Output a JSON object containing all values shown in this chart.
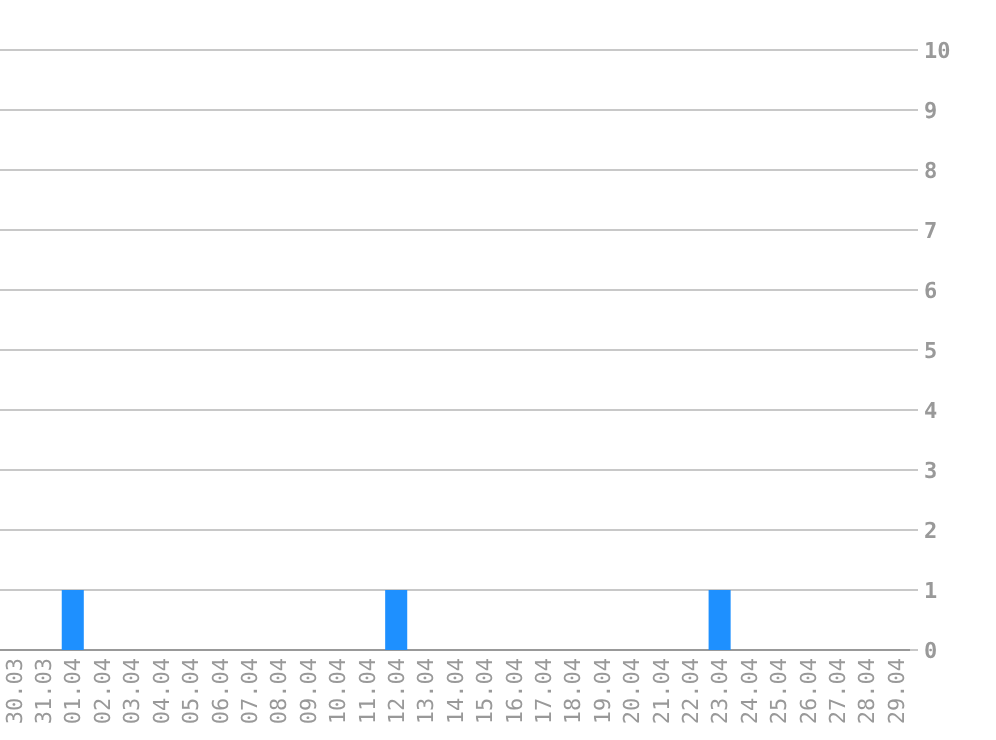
{
  "chart_data": {
    "type": "bar",
    "categories": [
      "30.03",
      "31.03",
      "01.04",
      "02.04",
      "03.04",
      "04.04",
      "05.04",
      "06.04",
      "07.04",
      "08.04",
      "09.04",
      "10.04",
      "11.04",
      "12.04",
      "13.04",
      "14.04",
      "15.04",
      "16.04",
      "17.04",
      "18.04",
      "19.04",
      "20.04",
      "21.04",
      "22.04",
      "23.04",
      "24.04",
      "25.04",
      "26.04",
      "27.04",
      "28.04",
      "29.04"
    ],
    "values": [
      0,
      0,
      1,
      0,
      0,
      0,
      0,
      0,
      0,
      0,
      0,
      0,
      0,
      1,
      0,
      0,
      0,
      0,
      0,
      0,
      0,
      0,
      0,
      0,
      1,
      0,
      0,
      0,
      0,
      0,
      0
    ],
    "color": "#1e90ff",
    "ylim": [
      0,
      10
    ],
    "yticks": [
      0,
      1,
      2,
      3,
      4,
      5,
      6,
      7,
      8,
      9,
      10
    ],
    "grid": "y"
  }
}
